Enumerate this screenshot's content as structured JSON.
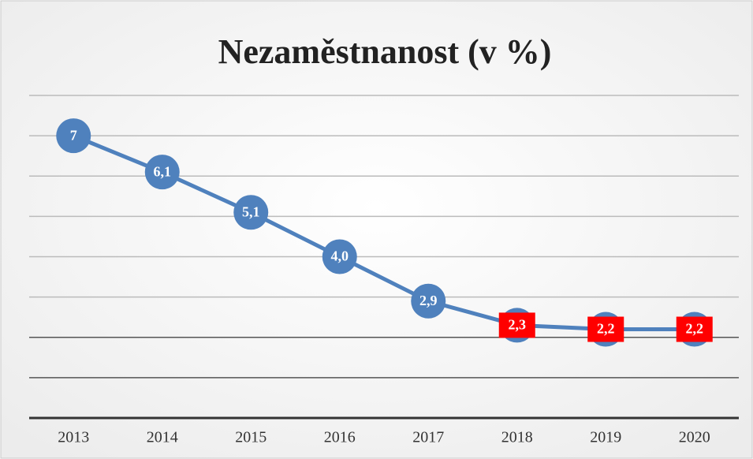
{
  "chart_data": {
    "type": "line",
    "title": "Nezaměstnanost (v %)",
    "categories": [
      "2013",
      "2014",
      "2015",
      "2016",
      "2017",
      "2018",
      "2019",
      "2020"
    ],
    "values": [
      7,
      6.1,
      5.1,
      4.0,
      2.9,
      2.3,
      2.2,
      2.2
    ],
    "value_labels": [
      "7",
      "6,1",
      "5,1",
      "4,0",
      "2,9",
      "2,3",
      "2,2",
      "2,2"
    ],
    "label_backgrounds": [
      null,
      null,
      null,
      null,
      null,
      "#ff0000",
      "#ff0000",
      "#ff0000"
    ],
    "color": "#4f81bd",
    "ylim": [
      0,
      8
    ],
    "yticks": [
      0,
      1,
      2,
      3,
      4,
      5,
      6,
      7,
      8
    ],
    "ytick_labels_shown": false,
    "grid": true
  }
}
